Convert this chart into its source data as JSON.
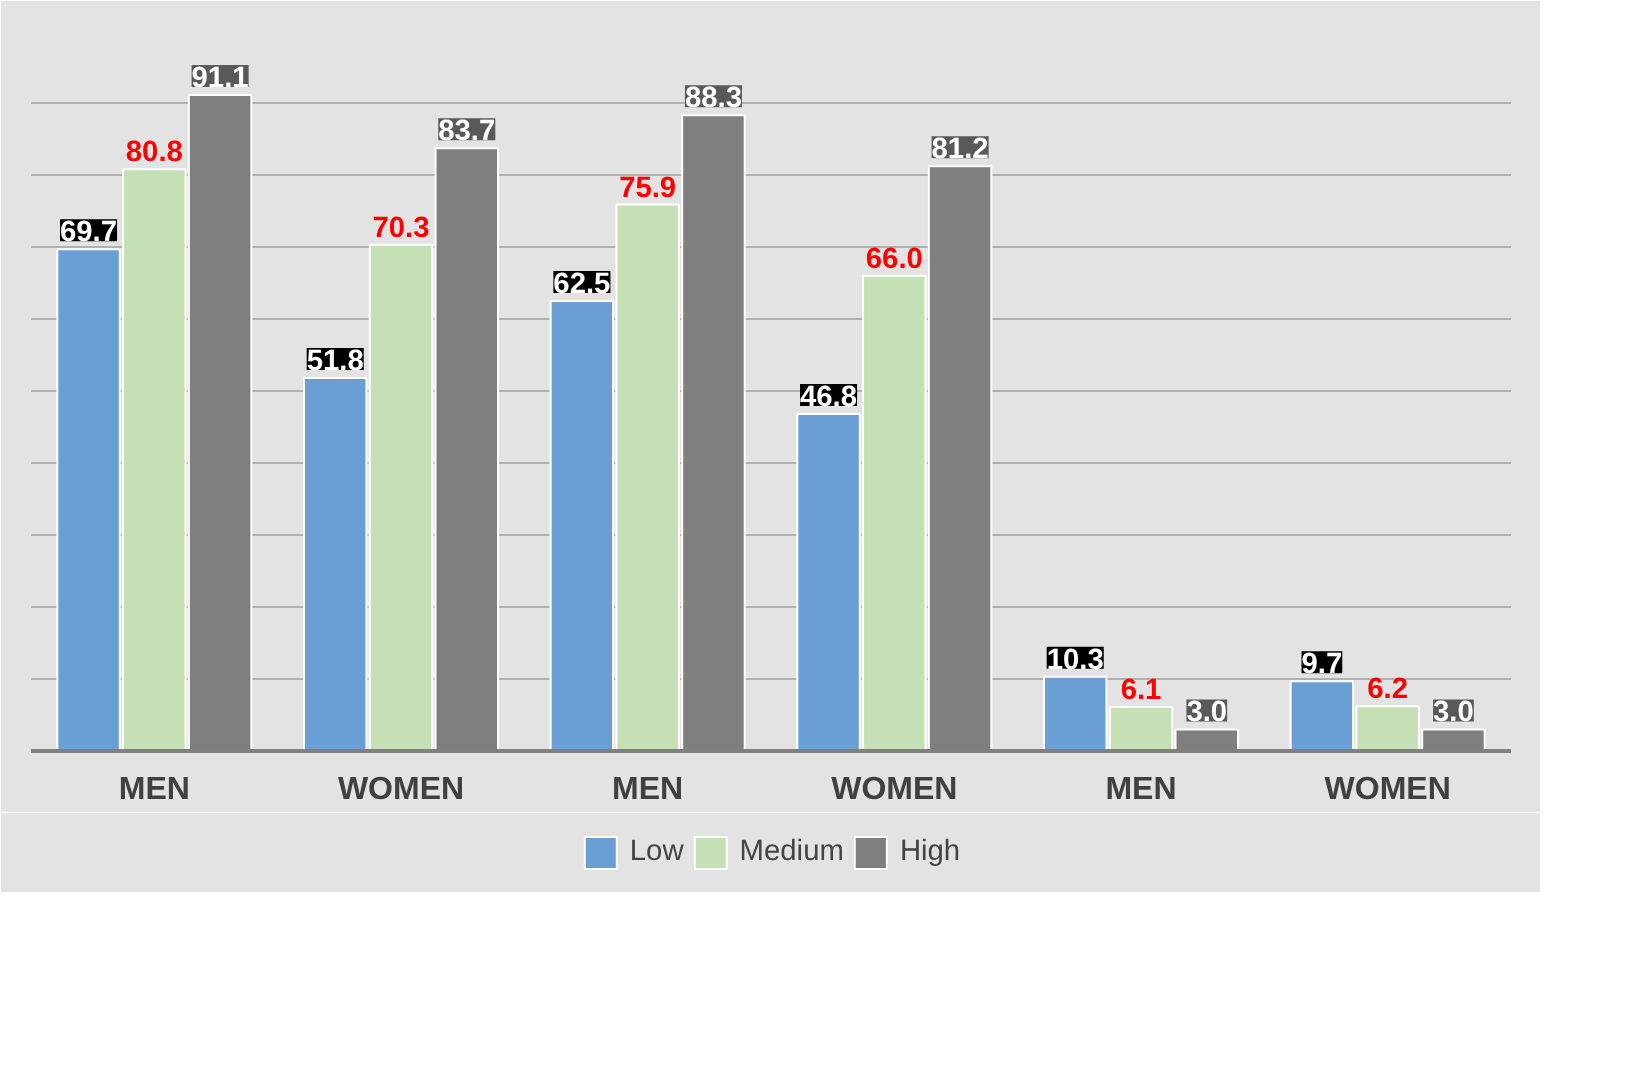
{
  "chart_data": {
    "type": "bar",
    "categories": [
      "MEN",
      "WOMEN",
      "MEN",
      "WOMEN",
      "MEN",
      "WOMEN"
    ],
    "series": [
      {
        "name": "Low",
        "color": "#6a9fd6",
        "values": [
          69.7,
          51.8,
          62.5,
          46.8,
          10.3,
          9.7
        ],
        "value_labels": [
          "69.7",
          "51.8",
          "62.5",
          "46.8",
          "10.3",
          "9.7"
        ]
      },
      {
        "name": "Medium",
        "color": "#c5e0b4",
        "values": [
          80.8,
          70.3,
          75.9,
          66.0,
          6.1,
          6.2
        ],
        "value_labels": [
          "80.8",
          "70.3",
          "75.9",
          "66.0",
          "6.1",
          "6.2"
        ]
      },
      {
        "name": "High",
        "color": "#7f7f7f",
        "values": [
          91.1,
          83.7,
          88.3,
          81.2,
          3.0,
          3.0
        ],
        "value_labels": [
          "91.1",
          "83.7",
          "88.3",
          "81.2",
          "3.0",
          "3.0"
        ]
      }
    ],
    "ylim": [
      0,
      100
    ],
    "yticks": [
      {
        "value": 0,
        "label": null
      },
      {
        "value": 10,
        "label": null
      },
      {
        "value": 20,
        "label": null
      },
      {
        "value": 30,
        "label": null
      },
      {
        "value": 40,
        "label": null
      },
      {
        "value": 50,
        "label": null
      },
      {
        "value": 60,
        "label": null
      },
      {
        "value": 70,
        "label": null
      },
      {
        "value": 80,
        "label": null
      },
      {
        "value": 90,
        "label": null
      },
      {
        "value": 100,
        "label": null
      }
    ],
    "tick_labels": "x",
    "grid": "y",
    "legend": "bottom"
  }
}
